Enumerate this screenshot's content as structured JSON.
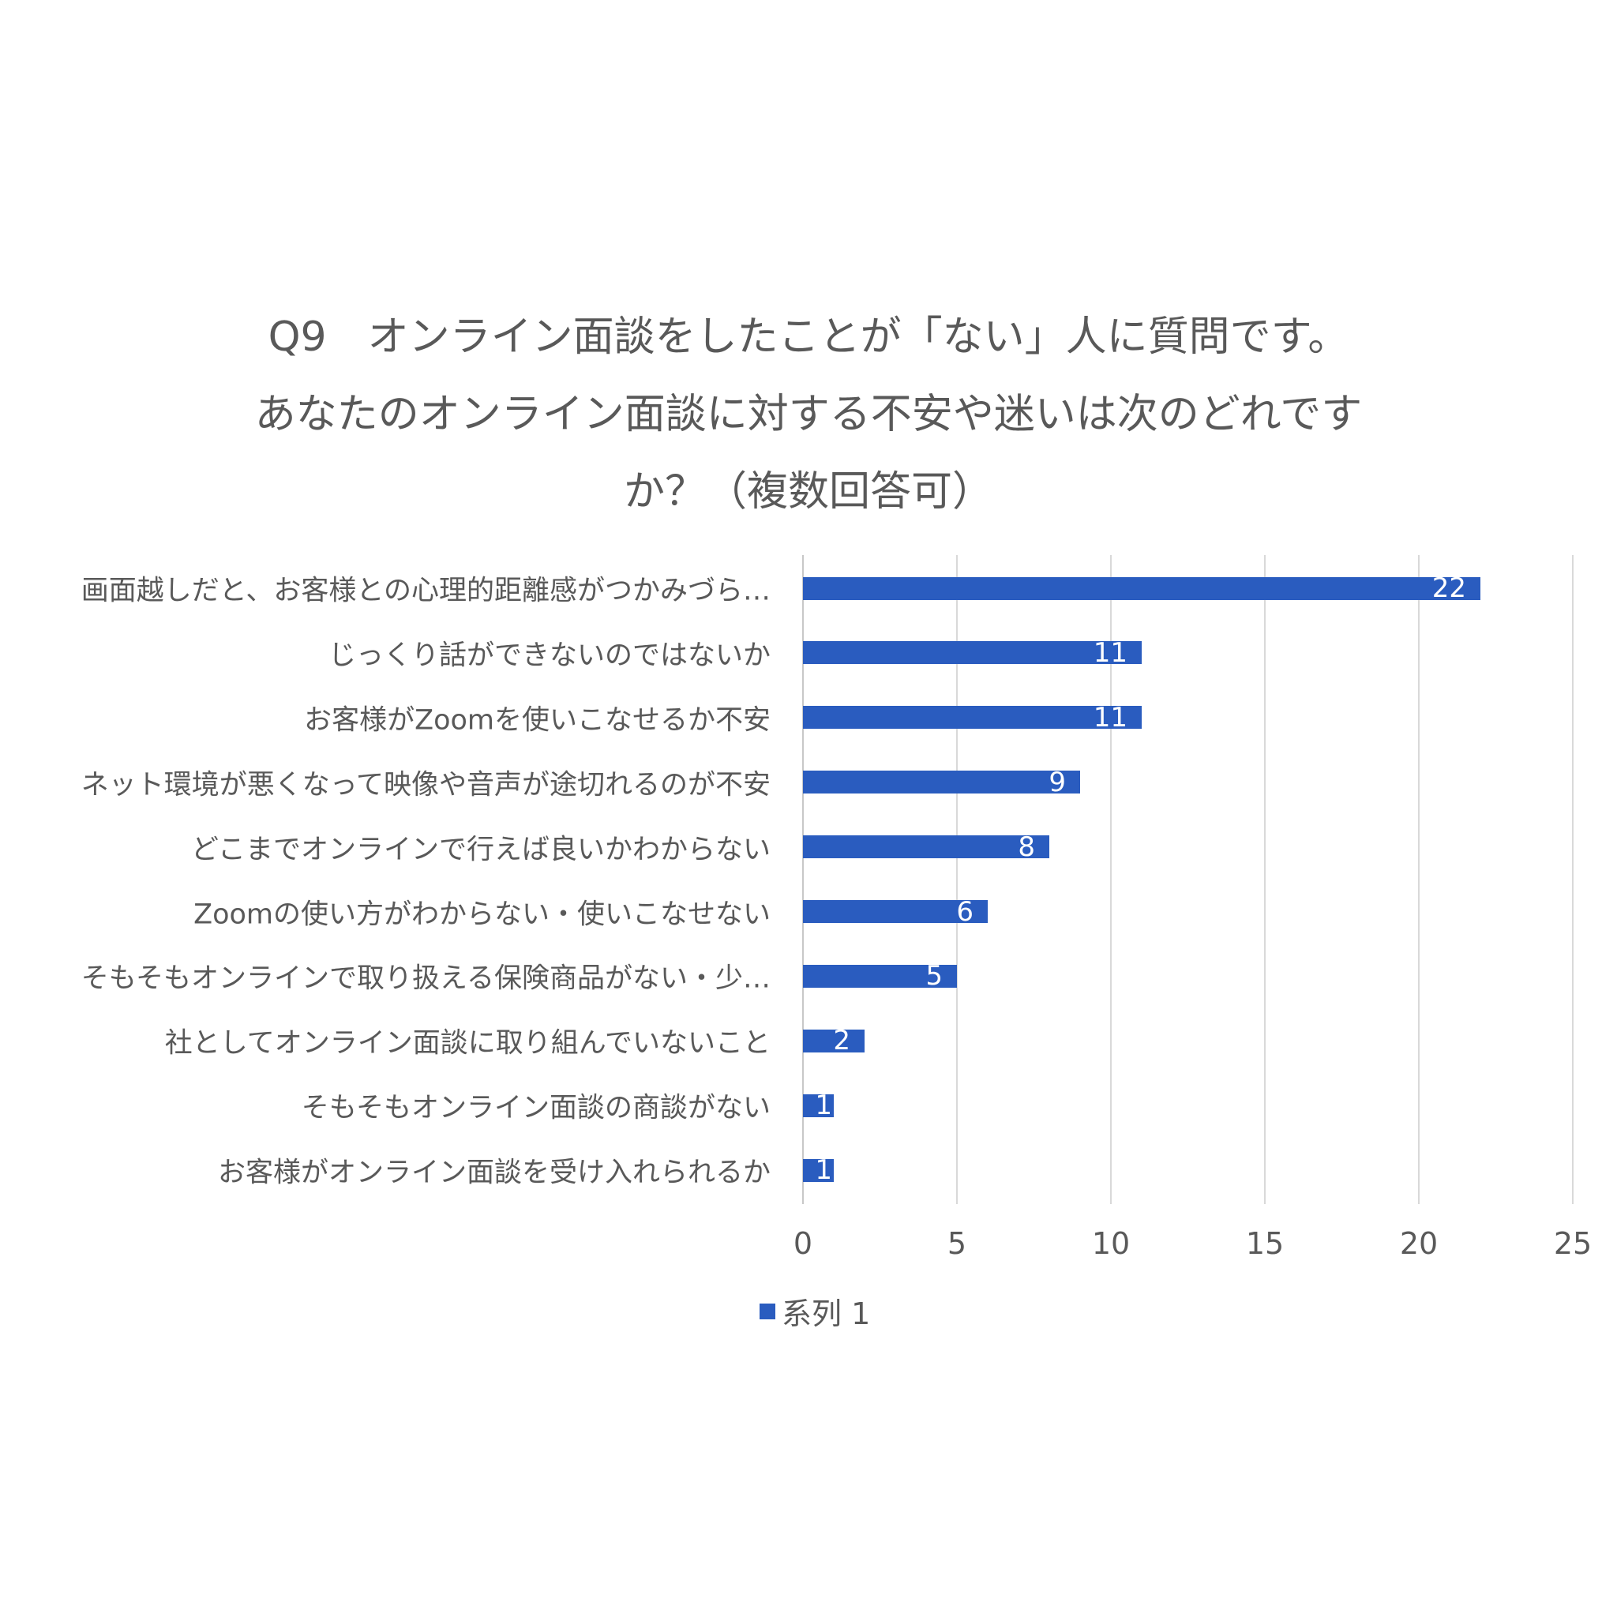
{
  "title": {
    "lines": [
      "Q9　オンライン面談をしたことが「ない」人に質問です。",
      "あなたのオンライン面談に対する不安や迷いは次のどれです",
      "か？（複数回答可）"
    ]
  },
  "legend": {
    "label": "系列 1",
    "color": "#2a5cbf"
  },
  "chart_data": {
    "type": "bar",
    "orientation": "horizontal",
    "title": "Q9　オンライン面談をしたことが「ない」人に質問です。あなたのオンライン面談に対する不安や迷いは次のどれですか？（複数回答可）",
    "categories": [
      "画面越しだと、お客様との心理的距離感がつかみづら…",
      "じっくり話ができないのではないか",
      "お客様がZoomを使いこなせるか不安",
      "ネット環境が悪くなって映像や音声が途切れるのが不安",
      "どこまでオンラインで行えば良いかわからない",
      "Zoomの使い方がわからない・使いこなせない",
      "そもそもオンラインで取り扱える保険商品がない・少…",
      "社としてオンライン面談に取り組んでいないこと",
      "そもそもオンライン面談の商談がない",
      "お客様がオンライン面談を受け入れられるか"
    ],
    "series": [
      {
        "name": "系列 1",
        "values": [
          22,
          11,
          11,
          9,
          8,
          6,
          5,
          2,
          1,
          1
        ],
        "color": "#2a5cbf"
      }
    ],
    "xlabel": "",
    "ylabel": "",
    "xlim": [
      0,
      25
    ],
    "xticks": [
      "0",
      "5",
      "10",
      "15",
      "20",
      "25"
    ],
    "grid": true,
    "data_labels": "inside_end",
    "legend_position": "bottom"
  }
}
